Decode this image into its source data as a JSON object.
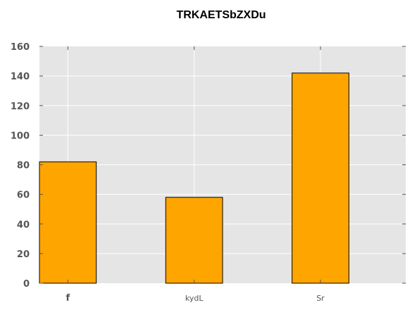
{
  "chart_data": {
    "type": "bar",
    "title": "TRKAETSbZXDu",
    "xlabel": "",
    "ylabel": "",
    "categories": [
      "f",
      "kydL",
      "Sr"
    ],
    "values": [
      82,
      58,
      142
    ],
    "ylim": [
      0,
      160
    ],
    "yticks": [
      "0",
      "20",
      "40",
      "60",
      "80",
      "100",
      "120",
      "140",
      "160"
    ],
    "grid": true,
    "bar_color": "#ffa500",
    "bar_edge_color": "#000000",
    "plot_background": "#e5e5e5",
    "grid_color": "#ffffff"
  }
}
